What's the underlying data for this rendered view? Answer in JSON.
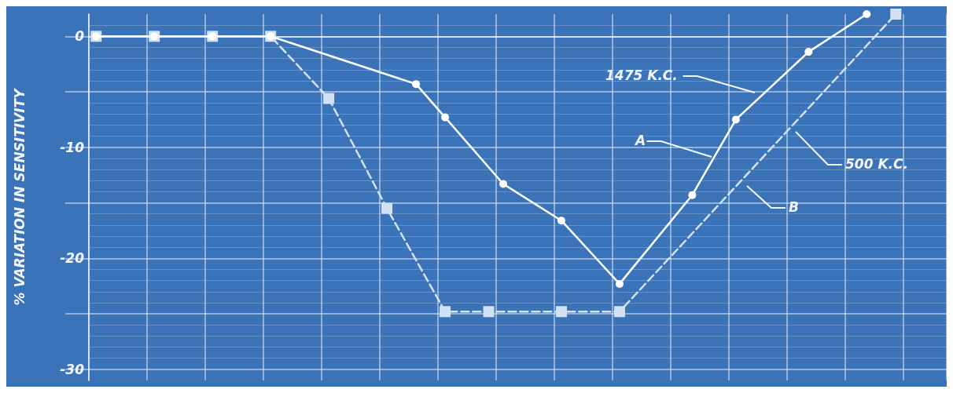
{
  "chart_data": {
    "type": "line",
    "ylabel": "% VARIATION IN SENSITIVITY",
    "categories": [
      null,
      null,
      null,
      null,
      null,
      null,
      null,
      null,
      null,
      null,
      null,
      null,
      null,
      null,
      null,
      null,
      null,
      null,
      null,
      null,
      null,
      null,
      null,
      null,
      null,
      null,
      null,
      null,
      null,
      null,
      null,
      null,
      null,
      null,
      null,
      null,
      null,
      null,
      null,
      null,
      null,
      null,
      null,
      null,
      null,
      null,
      null,
      null,
      null,
      null,
      null,
      null,
      null,
      null,
      null,
      null,
      null,
      null,
      null
    ],
    "ylim": [
      -31,
      2
    ],
    "yticks": [
      -30,
      {
        "value": -25,
        "label": null
      },
      -20,
      {
        "value": -15,
        "label": null
      },
      -10,
      {
        "value": -5,
        "label": null
      },
      0
    ],
    "grid": true,
    "series": [
      {
        "color": "#ffffff",
        "marker": "circle",
        "line_style": "solid",
        "values": [
          0,
          null,
          null,
          null,
          0,
          null,
          null,
          null,
          0,
          null,
          null,
          null,
          0,
          null,
          null,
          null,
          null,
          null,
          null,
          null,
          null,
          null,
          -4.3,
          null,
          -7.3,
          null,
          null,
          null,
          -13.3,
          null,
          null,
          null,
          -16.6,
          null,
          null,
          null,
          -22.3,
          null,
          null,
          null,
          null,
          -14.3,
          null,
          null,
          -7.5,
          null,
          null,
          null,
          null,
          -1.4,
          null,
          null,
          null,
          2,
          null,
          null,
          null,
          null,
          null
        ]
      },
      {
        "color": "#d3e2f3",
        "marker": "square",
        "line_style": "dashed",
        "values": [
          0,
          null,
          null,
          null,
          0,
          null,
          null,
          null,
          0,
          null,
          null,
          null,
          0,
          null,
          null,
          null,
          -5.6,
          null,
          null,
          null,
          -15.5,
          null,
          null,
          null,
          -24.8,
          null,
          null,
          -24.8,
          null,
          null,
          null,
          null,
          -24.8,
          null,
          null,
          null,
          -24.8,
          null,
          null,
          null,
          null,
          null,
          null,
          null,
          null,
          null,
          null,
          null,
          null,
          null,
          null,
          null,
          null,
          null,
          null,
          2,
          null,
          null,
          null
        ]
      }
    ],
    "annotations": [
      "1475 K.C.",
      "A",
      "500 K.C.",
      "B"
    ]
  }
}
